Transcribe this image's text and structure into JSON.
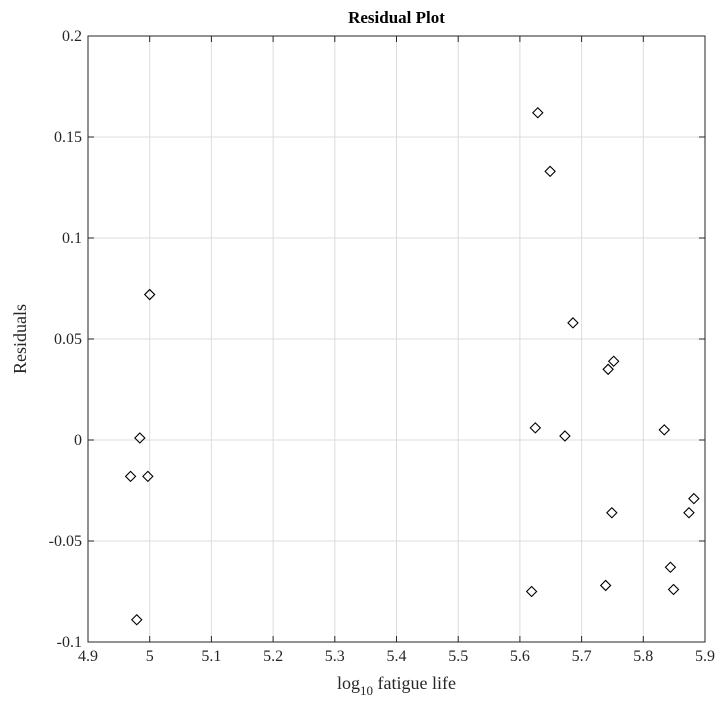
{
  "chart_data": {
    "type": "scatter",
    "title": "Residual Plot",
    "xlabel_main": "log",
    "xlabel_sub": "10",
    "xlabel_rest": " fatigue life",
    "ylabel": "Residuals",
    "xlim": [
      4.9,
      5.9
    ],
    "ylim": [
      -0.1,
      0.2
    ],
    "xticks": [
      4.9,
      5.0,
      5.1,
      5.2,
      5.3,
      5.4,
      5.5,
      5.6,
      5.7,
      5.8,
      5.9
    ],
    "xtick_labels": [
      "4.9",
      "5",
      "5.1",
      "5.2",
      "5.3",
      "5.4",
      "5.5",
      "5.6",
      "5.7",
      "5.8",
      "5.9"
    ],
    "yticks": [
      -0.1,
      -0.05,
      0,
      0.05,
      0.1,
      0.15,
      0.2
    ],
    "ytick_labels": [
      "-0.1",
      "-0.05",
      "0",
      "0.05",
      "0.1",
      "0.15",
      "0.2"
    ],
    "grid": true,
    "marker": "diamond",
    "marker_color": "#000000",
    "points": [
      {
        "x": 4.969,
        "y": -0.018
      },
      {
        "x": 4.979,
        "y": -0.089
      },
      {
        "x": 4.984,
        "y": 0.001
      },
      {
        "x": 4.997,
        "y": -0.018
      },
      {
        "x": 5.0,
        "y": 0.072
      },
      {
        "x": 5.619,
        "y": -0.075
      },
      {
        "x": 5.625,
        "y": 0.006
      },
      {
        "x": 5.629,
        "y": 0.162
      },
      {
        "x": 5.649,
        "y": 0.133
      },
      {
        "x": 5.673,
        "y": 0.002
      },
      {
        "x": 5.686,
        "y": 0.058
      },
      {
        "x": 5.739,
        "y": -0.072
      },
      {
        "x": 5.743,
        "y": 0.035
      },
      {
        "x": 5.749,
        "y": -0.036
      },
      {
        "x": 5.752,
        "y": 0.039
      },
      {
        "x": 5.834,
        "y": 0.005
      },
      {
        "x": 5.844,
        "y": -0.063
      },
      {
        "x": 5.849,
        "y": -0.074
      },
      {
        "x": 5.874,
        "y": -0.036
      },
      {
        "x": 5.882,
        "y": -0.029
      }
    ]
  }
}
